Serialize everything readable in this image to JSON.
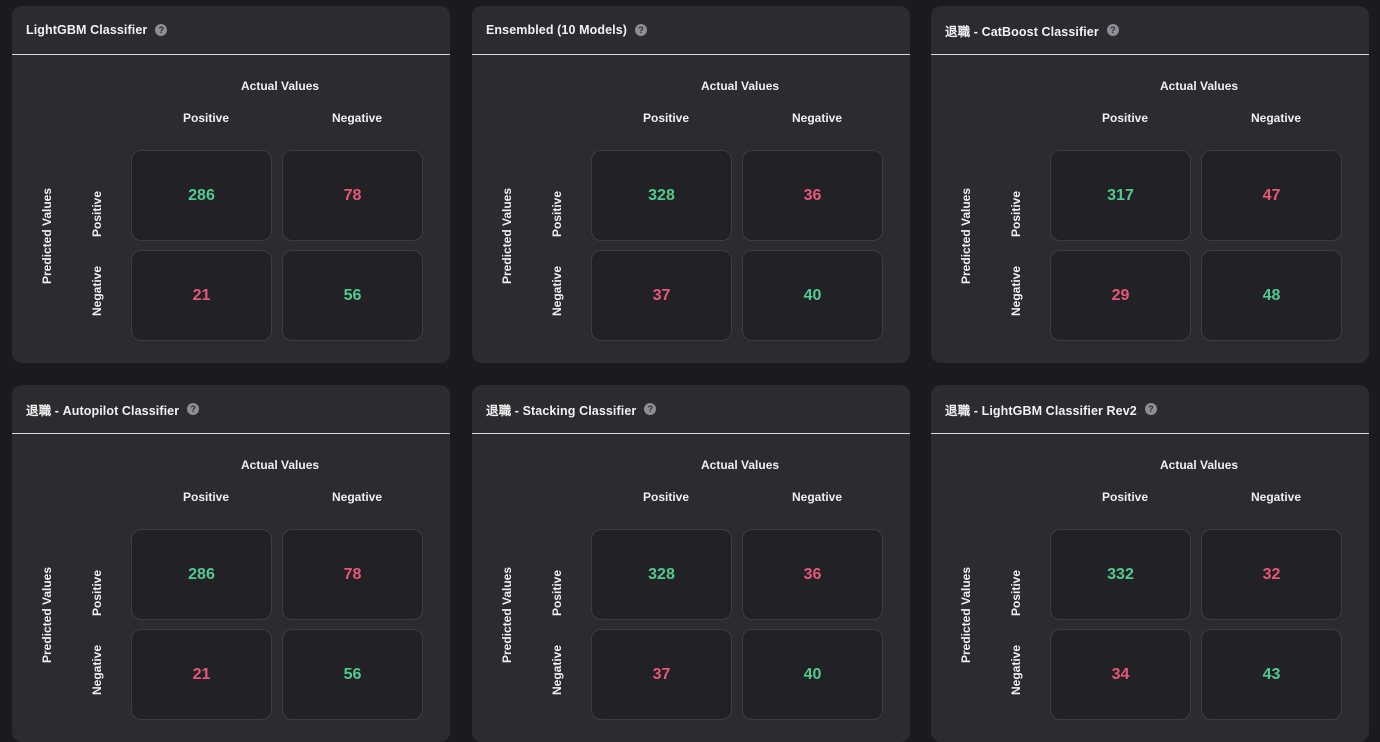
{
  "labels": {
    "actual": "Actual Values",
    "predicted": "Predicted Values",
    "positive": "Positive",
    "negative": "Negative",
    "help_glyph": "?"
  },
  "colors": {
    "correct": "#52c98f",
    "incorrect": "#e8577a",
    "card_bg": "#2b2b30",
    "page_bg": "#1b1b1f"
  },
  "cards": [
    {
      "title": "LightGBM Classifier",
      "matrix": {
        "tp": "286",
        "fp": "78",
        "fn": "21",
        "tn": "56"
      }
    },
    {
      "title": "Ensembled (10 Models)",
      "matrix": {
        "tp": "328",
        "fp": "36",
        "fn": "37",
        "tn": "40"
      }
    },
    {
      "title": "退職 - CatBoost Classifier",
      "matrix": {
        "tp": "317",
        "fp": "47",
        "fn": "29",
        "tn": "48"
      }
    },
    {
      "title": "退職 - Autopilot Classifier",
      "matrix": {
        "tp": "286",
        "fp": "78",
        "fn": "21",
        "tn": "56"
      }
    },
    {
      "title": "退職 - Stacking Classifier",
      "matrix": {
        "tp": "328",
        "fp": "36",
        "fn": "37",
        "tn": "40"
      }
    },
    {
      "title": "退職 - LightGBM Classifier Rev2",
      "matrix": {
        "tp": "332",
        "fp": "32",
        "fn": "34",
        "tn": "43"
      }
    }
  ]
}
